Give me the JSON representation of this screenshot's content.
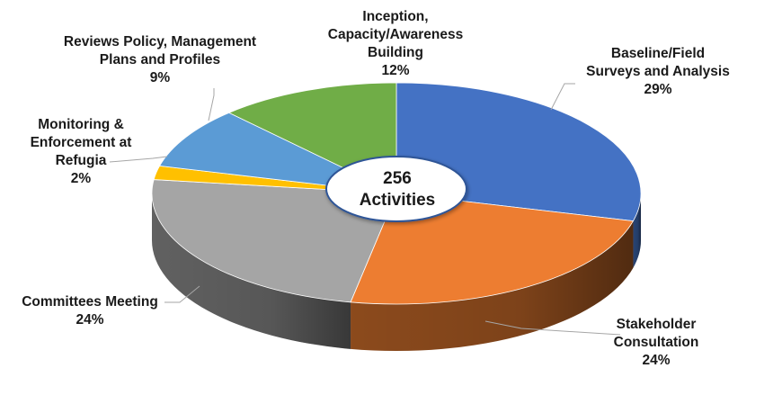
{
  "chart_data": {
    "type": "pie",
    "center_text": {
      "count": "256",
      "unit": "Activities"
    },
    "slices": [
      {
        "label": "Baseline/Field Surveys and Analysis",
        "label_lines": [
          "Baseline/Field",
          "Surveys and Analysis"
        ],
        "percent_text": "29%",
        "value": 29,
        "color": "#4472C4"
      },
      {
        "label": "Stakeholder Consultation",
        "label_lines": [
          "Stakeholder",
          "Consultation"
        ],
        "percent_text": "24%",
        "value": 24,
        "color": "#ED7D31"
      },
      {
        "label": "Committees Meeting",
        "label_lines": [
          "Committees Meeting"
        ],
        "percent_text": "24%",
        "value": 24,
        "color": "#A5A5A5"
      },
      {
        "label": "Monitoring & Enforcement at Refugia",
        "label_lines": [
          "Monitoring &",
          "Enforcement at",
          "Refugia"
        ],
        "percent_text": "2%",
        "value": 2,
        "color": "#FFC000"
      },
      {
        "label": "Reviews Policy, Management Plans and Profiles",
        "label_lines": [
          "Reviews Policy, Management",
          "Plans and Profiles"
        ],
        "percent_text": "9%",
        "value": 9,
        "color": "#5B9BD5"
      },
      {
        "label": "Inception, Capacity/Awareness Building",
        "label_lines": [
          "Inception,",
          "Capacity/Awareness",
          "Building"
        ],
        "percent_text": "12%",
        "value": 12,
        "color": "#70AD47"
      }
    ]
  }
}
